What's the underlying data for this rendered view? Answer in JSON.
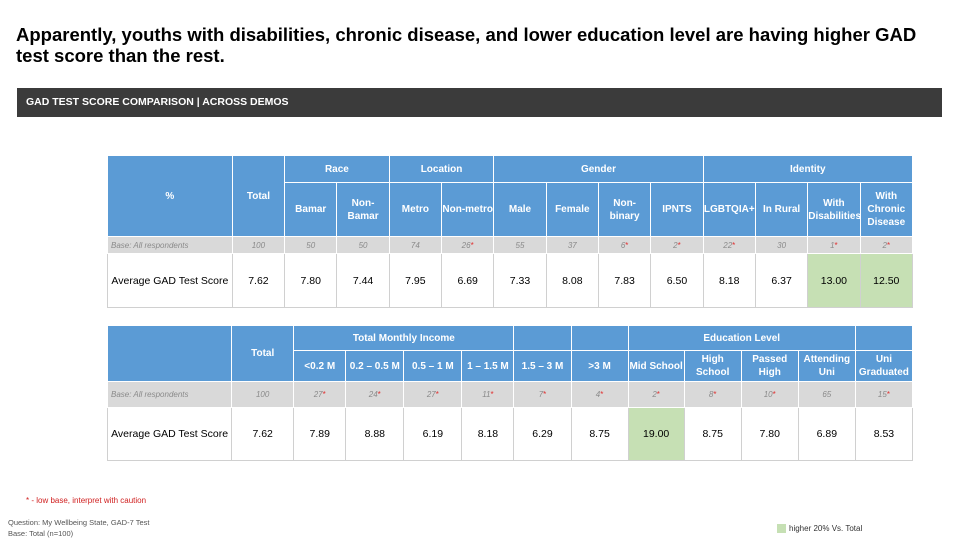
{
  "title": "Apparently, youths with disabilities, chronic disease, and lower education level are having higher GAD test score than the rest.",
  "banner": "GAD TEST SCORE COMPARISON | ACROSS DEMOS",
  "colors": {
    "header_blue": "#5b9bd5",
    "highlight_green": "#c6e0b4",
    "banner_dark": "#3b3b3b",
    "low_base_red": "#e03030"
  },
  "table1": {
    "pct_label": "%",
    "total_label": "Total",
    "groups": {
      "race": "Race",
      "location": "Location",
      "gender": "Gender",
      "identity": "Identity"
    },
    "columns": [
      "Bamar",
      "Non-Bamar",
      "Metro",
      "Non-metro",
      "Male",
      "Female",
      "Non-binary",
      "IPNTS",
      "LGBTQIA+",
      "In Rural",
      "With Disabilities",
      "With Chronic Disease"
    ],
    "base_label": "Base: All respondents",
    "base_total": "100",
    "base": [
      "50",
      "50",
      "74",
      "26",
      "55",
      "37",
      "6",
      "2",
      "22",
      "30",
      "1",
      "2"
    ],
    "row_label": "Average GAD Test Score",
    "total_value": "7.62",
    "values": [
      "7.80",
      "7.44",
      "7.95",
      "6.69",
      "7.33",
      "8.08",
      "7.83",
      "6.50",
      "8.18",
      "6.37",
      "13.00",
      "12.50"
    ]
  },
  "table2": {
    "total_label": "Total",
    "groups": {
      "income": "Total Monthly Income",
      "education": "Education Level"
    },
    "columns": [
      "<0.2 M",
      "0.2 – 0.5 M",
      "0.5 – 1 M",
      "1 – 1.5 M",
      "1.5 – 3 M",
      ">3 M",
      "Mid School",
      "High School",
      "Passed High",
      "Attending Uni",
      "Uni Graduated"
    ],
    "base_label": "Base: All respondents",
    "base_total": "100",
    "base": [
      "27",
      "24",
      "27",
      "11",
      "7",
      "4",
      "2",
      "8",
      "10",
      "65",
      "15"
    ],
    "row_label": "Average GAD Test Score",
    "total_value": "7.62",
    "values": [
      "7.89",
      "8.88",
      "6.19",
      "8.18",
      "6.29",
      "8.75",
      "19.00",
      "8.75",
      "7.80",
      "6.89",
      "8.53"
    ]
  },
  "notes": {
    "low_base": "* - low base, interpret with caution",
    "question": "Question: My Wellbeing State, GAD-7  Test",
    "base_total": "Base: Total (n=100)",
    "legend": "higher 20% Vs. Total"
  }
}
